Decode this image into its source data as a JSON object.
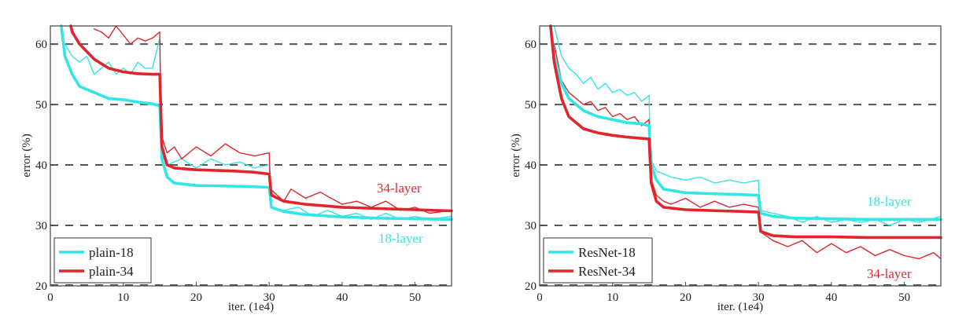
{
  "chart_data": [
    {
      "type": "line",
      "xlabel": "iter. (1e4)",
      "ylabel": "error (%)",
      "xlim": [
        0,
        55
      ],
      "ylim": [
        20,
        63
      ],
      "xticks": [
        0,
        10,
        20,
        30,
        40,
        50
      ],
      "yticks": [
        20,
        30,
        40,
        50,
        60
      ],
      "grid_dashed_y": [
        30,
        40,
        50,
        60
      ],
      "legend": {
        "position": "bottom-left",
        "entries": [
          "plain-18",
          "plain-34"
        ]
      },
      "annotations": [
        {
          "text": "34-layer",
          "x": 47,
          "y": 36,
          "series": "plain-34"
        },
        {
          "text": "18-layer",
          "x": 47,
          "y": 28,
          "series": "plain-18"
        }
      ],
      "series": [
        {
          "name": "plain-18",
          "role": "val",
          "color": "#33e6e6",
          "x": [
            1.5,
            2,
            3,
            4,
            6,
            8,
            10,
            12,
            14,
            15,
            15.3,
            16,
            17,
            20,
            25,
            28,
            30,
            30.3,
            32,
            35,
            40,
            45,
            50,
            55
          ],
          "y": [
            63,
            58,
            55,
            53,
            52,
            51,
            50.8,
            50.4,
            50.1,
            49.8,
            41,
            38,
            37,
            36.6,
            36.5,
            36.4,
            36.3,
            33,
            32.3,
            31.8,
            31.4,
            31.2,
            31.1,
            31
          ]
        },
        {
          "name": "plain-34",
          "role": "val",
          "color": "#e0262c",
          "x": [
            2.8,
            3,
            4,
            6,
            8,
            10,
            12,
            14,
            15,
            15.3,
            16,
            17,
            20,
            25,
            28,
            30,
            30.3,
            32,
            35,
            40,
            45,
            50,
            55
          ],
          "y": [
            63,
            62,
            60,
            57.5,
            56,
            55.4,
            55.1,
            55,
            55,
            43,
            40,
            39.5,
            39.2,
            39,
            38.8,
            38.5,
            35,
            34,
            33.5,
            33,
            32.8,
            32.6,
            32.4
          ]
        },
        {
          "name": "plain-18-train",
          "role": "train",
          "color": "#33e6e6",
          "x": [
            2,
            3,
            4,
            5,
            6,
            7,
            8,
            9,
            10,
            11,
            12,
            13,
            14,
            15,
            15.2,
            16,
            18,
            20,
            22,
            24,
            26,
            28,
            30,
            30.2,
            32,
            34,
            36,
            38,
            40,
            42,
            44,
            46,
            48,
            50,
            52,
            55
          ],
          "y": [
            60,
            58,
            57,
            58,
            55,
            56,
            57,
            55,
            56,
            55,
            57,
            56,
            56,
            61,
            42,
            40,
            41,
            39.5,
            41,
            40,
            40.5,
            39.5,
            40,
            33,
            32.5,
            33,
            31.5,
            32.5,
            31.5,
            32,
            31,
            32,
            31,
            31.5,
            31,
            31.5
          ]
        },
        {
          "name": "plain-34-train",
          "role": "train",
          "color": "#e0262c",
          "x": [
            6,
            7,
            8,
            9,
            10,
            11,
            12,
            13,
            14,
            15,
            15.2,
            16,
            17,
            18,
            20,
            22,
            24,
            26,
            28,
            30,
            30.2,
            32,
            33,
            35,
            37,
            40,
            42,
            44,
            46,
            48,
            50,
            52,
            55
          ],
          "y": [
            62.5,
            62,
            61,
            63,
            61.5,
            60,
            61,
            60.5,
            61,
            62,
            45,
            42,
            43,
            41,
            43,
            41.5,
            43.5,
            42,
            41.5,
            42,
            36,
            34,
            36,
            34.5,
            35.5,
            33.5,
            34,
            33,
            34,
            32.5,
            33,
            32,
            32.5
          ]
        }
      ]
    },
    {
      "type": "line",
      "xlabel": "iter. (1e4)",
      "ylabel": "error (%)",
      "xlim": [
        0,
        55
      ],
      "ylim": [
        20,
        63
      ],
      "xticks": [
        0,
        10,
        20,
        30,
        40,
        50
      ],
      "yticks": [
        20,
        30,
        40,
        50,
        60
      ],
      "grid_dashed_y": [
        30,
        40,
        50,
        60
      ],
      "legend": {
        "position": "bottom-left",
        "entries": [
          "ResNet-18",
          "ResNet-34"
        ]
      },
      "annotations": [
        {
          "text": "18-layer",
          "x": 47,
          "y": 34,
          "series": "ResNet-18"
        },
        {
          "text": "34-layer",
          "x": 47,
          "y": 22,
          "series": "ResNet-34"
        }
      ],
      "series": [
        {
          "name": "ResNet-18",
          "role": "val",
          "color": "#33e6e6",
          "x": [
            1.5,
            2,
            3,
            4,
            6,
            8,
            10,
            12,
            14,
            15,
            15.3,
            16,
            17,
            20,
            25,
            28,
            30,
            30.3,
            32,
            35,
            40,
            45,
            50,
            55
          ],
          "y": [
            63,
            58,
            53.5,
            51,
            49,
            48,
            47.5,
            47,
            46.8,
            46.5,
            40,
            37.5,
            36,
            35.4,
            35.2,
            35.1,
            35,
            32,
            31.5,
            31.2,
            31.1,
            31,
            31,
            31
          ]
        },
        {
          "name": "ResNet-34",
          "role": "val",
          "color": "#e0262c",
          "x": [
            1.5,
            2,
            3,
            4,
            6,
            8,
            10,
            12,
            14,
            15,
            15.3,
            16,
            17,
            20,
            25,
            28,
            30,
            30.3,
            32,
            35,
            40,
            45,
            50,
            55
          ],
          "y": [
            63,
            57,
            51,
            48,
            46,
            45.3,
            44.9,
            44.6,
            44.4,
            44.3,
            37,
            34,
            33,
            32.6,
            32.4,
            32.3,
            32.2,
            29,
            28.3,
            28.1,
            28.1,
            28,
            28,
            28
          ]
        },
        {
          "name": "ResNet-18-train",
          "role": "train",
          "color": "#33e6e6",
          "x": [
            2,
            3,
            4,
            5,
            6,
            7,
            8,
            9,
            10,
            11,
            12,
            13,
            14,
            15,
            15.2,
            16,
            18,
            20,
            22,
            24,
            26,
            28,
            30,
            30.2,
            32,
            34,
            36,
            38,
            40,
            42,
            44,
            46,
            48,
            50,
            52,
            55
          ],
          "y": [
            63,
            58,
            56,
            55,
            53.5,
            54.5,
            52.5,
            53.5,
            52,
            52.5,
            51.5,
            52,
            50.5,
            51.5,
            41,
            39,
            38,
            37.5,
            38,
            37,
            37.5,
            37,
            37.5,
            32.5,
            32,
            31.5,
            30.5,
            31.5,
            30.5,
            31,
            30.5,
            31,
            30,
            31,
            30.5,
            31.5
          ]
        },
        {
          "name": "ResNet-34-train",
          "role": "train",
          "color": "#e0262c",
          "x": [
            2,
            3,
            4,
            5,
            6,
            7,
            8,
            9,
            10,
            11,
            12,
            13,
            14,
            15,
            15.2,
            16,
            17,
            18,
            20,
            22,
            24,
            26,
            28,
            30,
            30.2,
            32,
            34,
            36,
            38,
            40,
            42,
            44,
            46,
            48,
            50,
            52,
            54,
            55
          ],
          "y": [
            60,
            54,
            52,
            51,
            50,
            50.5,
            49,
            49.5,
            48,
            48.5,
            47.5,
            48,
            46.5,
            47.5,
            38,
            35,
            34,
            33.5,
            34.5,
            33,
            34,
            33,
            33.5,
            33,
            29,
            27.5,
            26.5,
            27.5,
            25.5,
            27,
            25.5,
            26.5,
            25,
            26,
            25,
            24.5,
            25.5,
            24.5
          ]
        }
      ]
    }
  ]
}
